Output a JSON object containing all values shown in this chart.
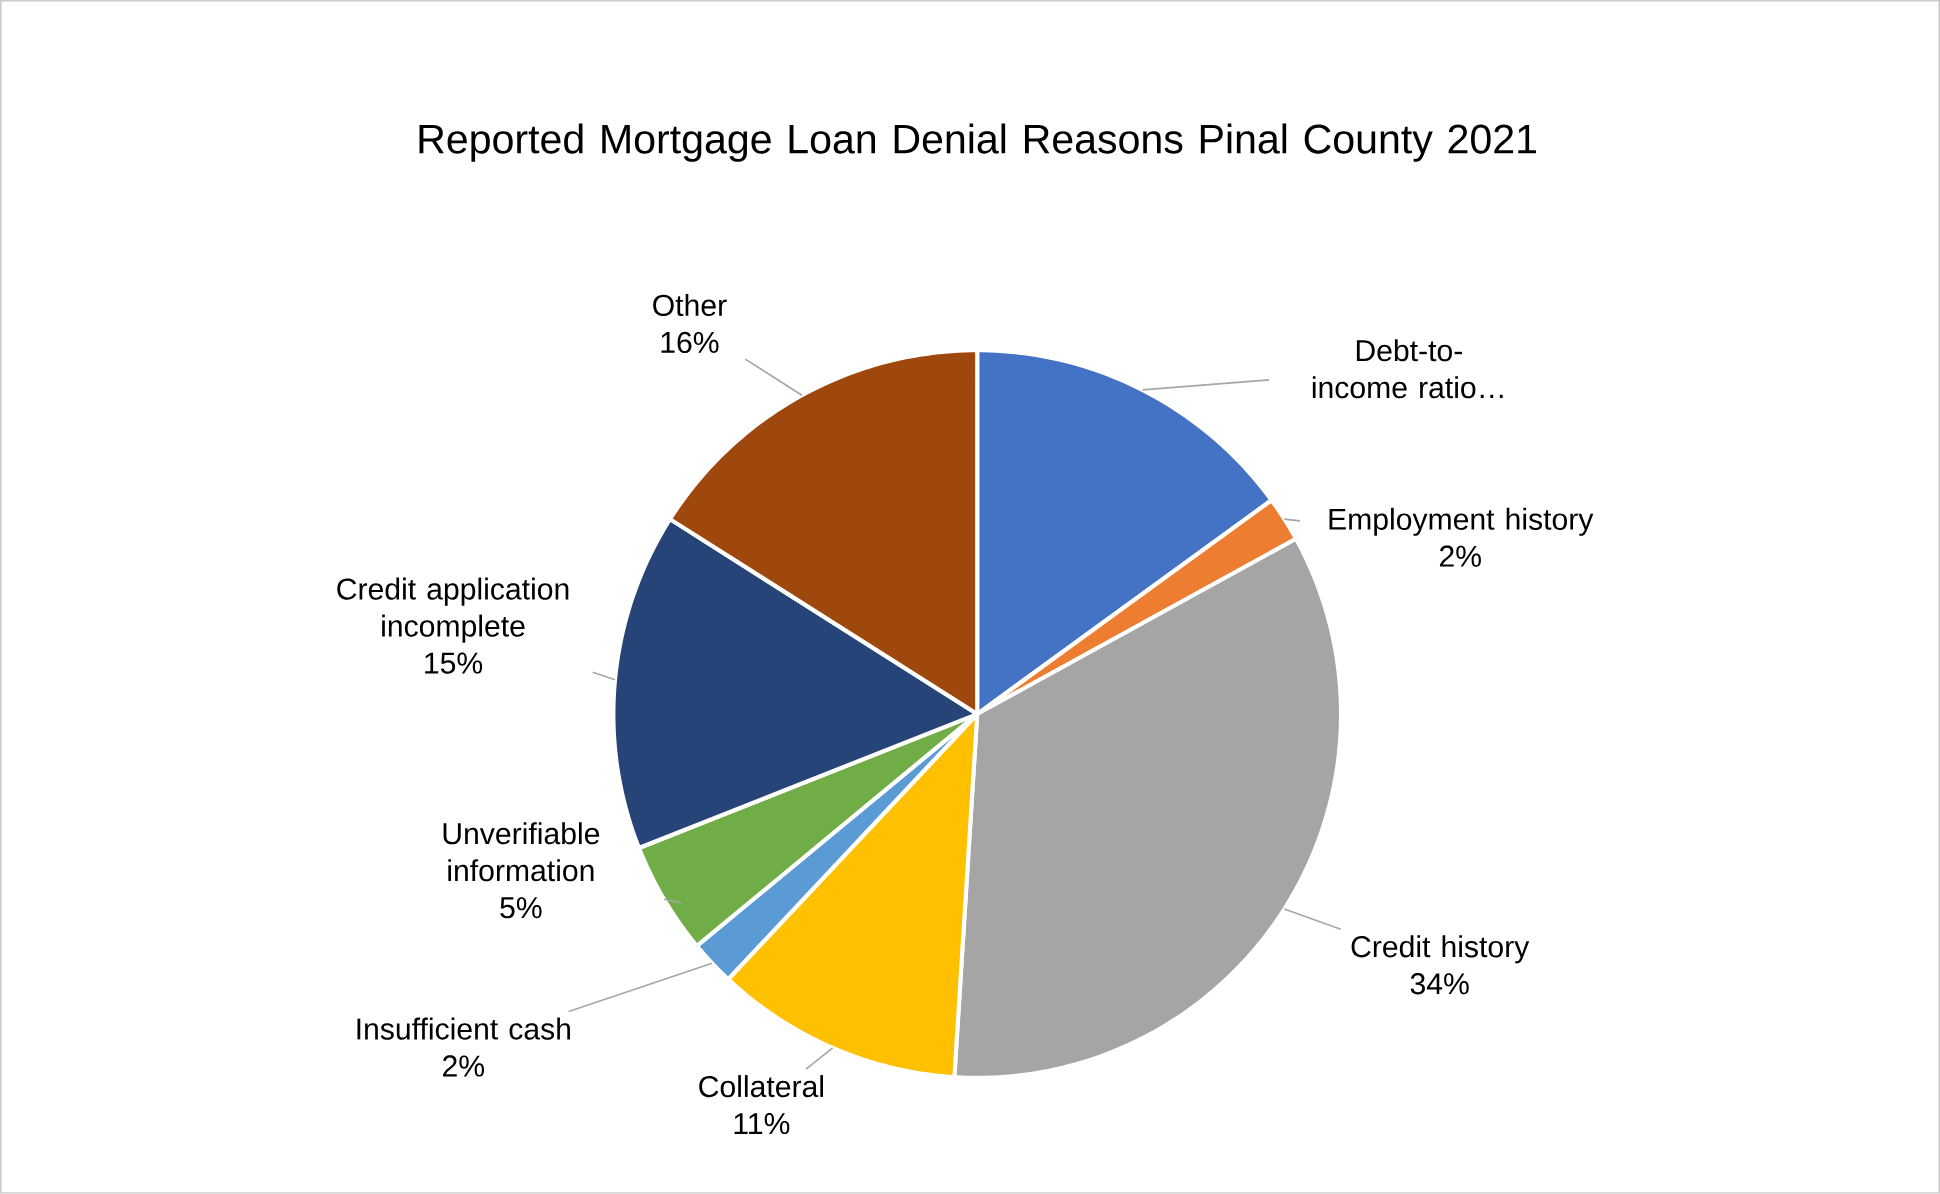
{
  "chart_data": {
    "type": "pie",
    "title": "Reported Mortgage Loan Denial Reasons Pinal County 2021",
    "categories": [
      "Debt-to-income ratio…",
      "Employment history",
      "Credit history",
      "Collateral",
      "Insufficient cash",
      "Unverifiable information",
      "Credit application incomplete",
      "Other"
    ],
    "values": [
      15,
      2,
      34,
      11,
      2,
      5,
      15,
      16
    ],
    "value_labels": [
      null,
      "2%",
      "34%",
      "11%",
      "2%",
      "5%",
      "15%",
      "16%"
    ],
    "colors": [
      "#4472c4",
      "#ed7d31",
      "#a5a5a5",
      "#ffc000",
      "#5b9bd5",
      "#70ad47",
      "#264478",
      "#9e480e"
    ]
  }
}
